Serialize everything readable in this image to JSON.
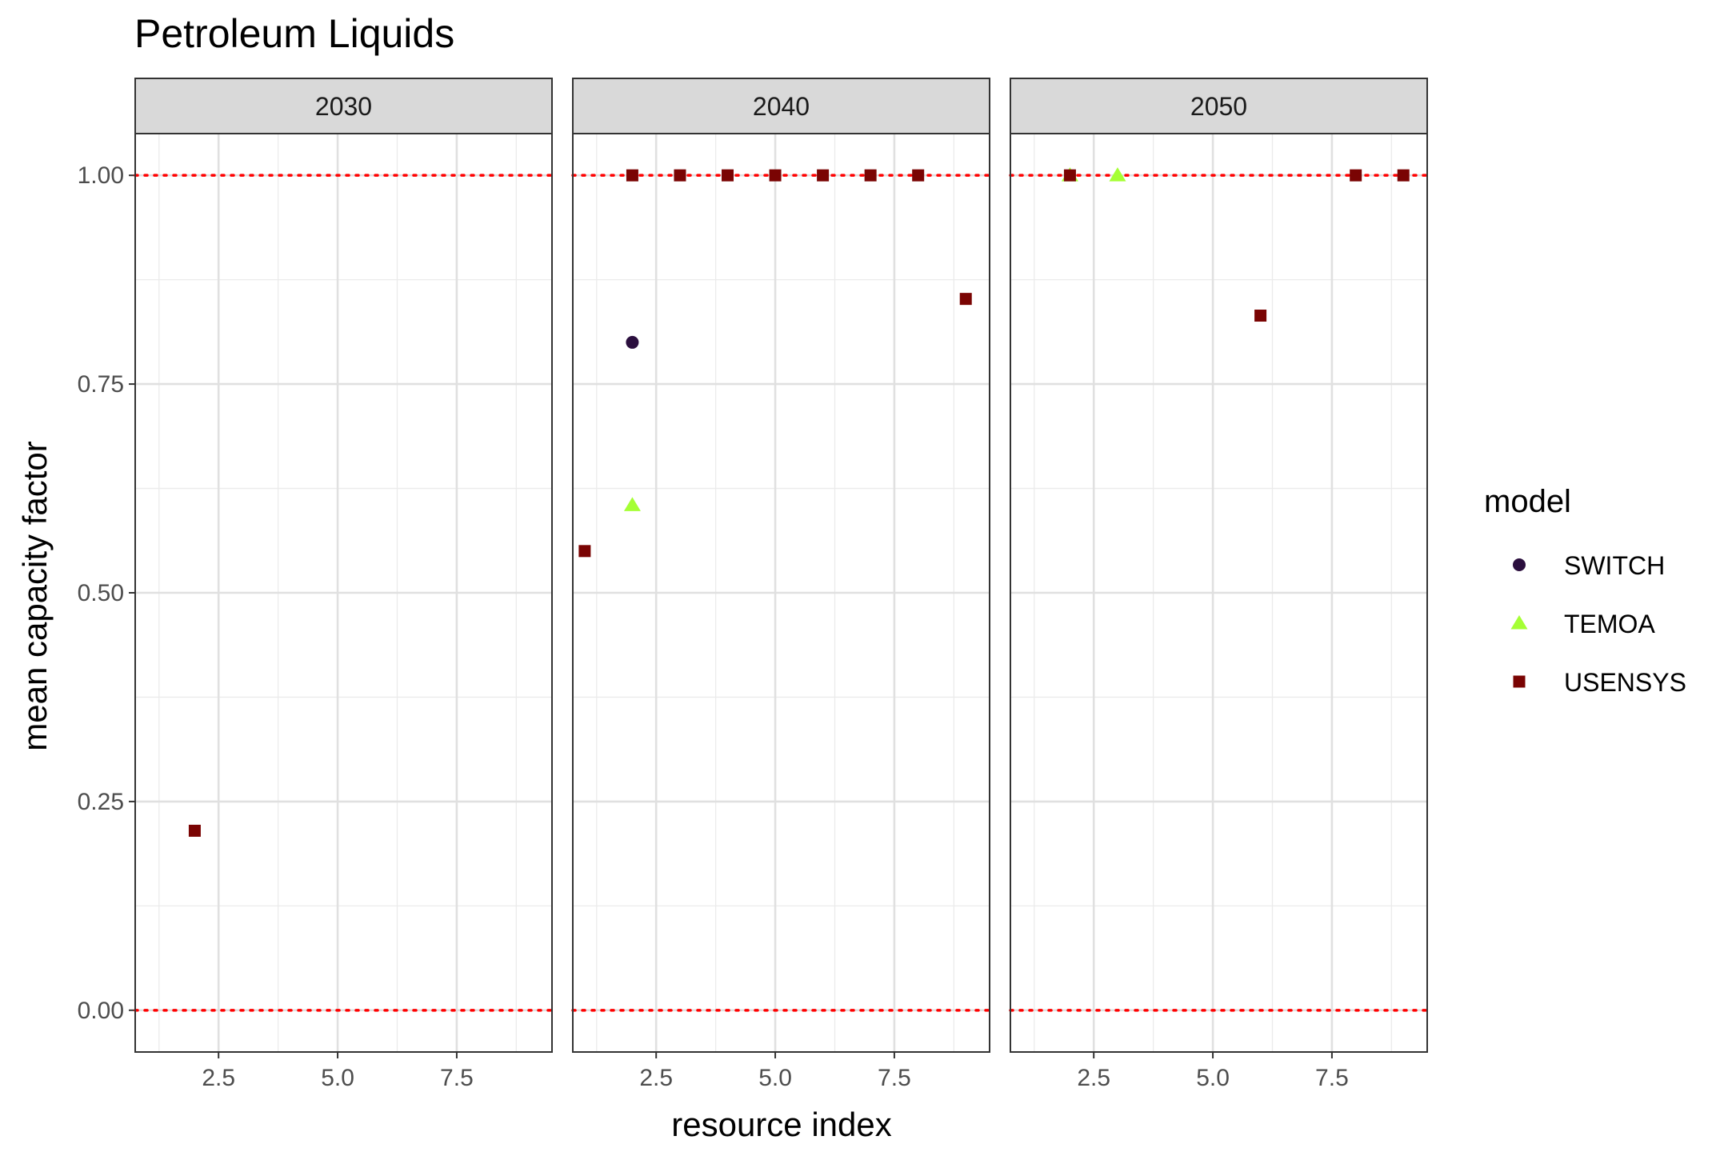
{
  "chart_data": {
    "type": "scatter",
    "title": "Petroleum Liquids",
    "xlabel": "resource index",
    "ylabel": "mean capacity factor",
    "xlim": [
      0.75,
      9.5
    ],
    "ylim": [
      -0.05,
      1.05
    ],
    "x_ticks": [
      2.5,
      5.0,
      7.5
    ],
    "x_tick_labels": [
      "2.5",
      "5.0",
      "7.5"
    ],
    "y_ticks": [
      0,
      0.25,
      0.5,
      0.75,
      1.0
    ],
    "y_tick_labels": [
      "0.00",
      "0.25",
      "0.50",
      "0.75",
      "1.00"
    ],
    "reference_lines": [
      0,
      1
    ],
    "reference_line_color": "#ff0000",
    "grid": true,
    "legend": {
      "title": "model",
      "position": "right",
      "entries": [
        {
          "name": "SWITCH",
          "shape": "circle",
          "color": "#2b0f3e"
        },
        {
          "name": "TEMOA",
          "shape": "triangle",
          "color": "#a5ff34"
        },
        {
          "name": "USENSYS",
          "shape": "square",
          "color": "#7a0403"
        }
      ]
    },
    "facets": [
      {
        "label": "2030",
        "series": [
          {
            "name": "USENSYS",
            "points": [
              [
                2,
                0.215
              ]
            ]
          }
        ]
      },
      {
        "label": "2040",
        "series": [
          {
            "name": "SWITCH",
            "points": [
              [
                2,
                0.8
              ]
            ]
          },
          {
            "name": "TEMOA",
            "points": [
              [
                2,
                0.605
              ]
            ]
          },
          {
            "name": "USENSYS",
            "points": [
              [
                1,
                0.55
              ],
              [
                2,
                1.0
              ],
              [
                3,
                1.0
              ],
              [
                4,
                1.0
              ],
              [
                5,
                1.0
              ],
              [
                6,
                1.0
              ],
              [
                7,
                1.0
              ],
              [
                8,
                1.0
              ],
              [
                9,
                0.852
              ]
            ]
          }
        ]
      },
      {
        "label": "2050",
        "series": [
          {
            "name": "TEMOA",
            "points": [
              [
                2,
                1.0
              ],
              [
                3,
                1.0
              ]
            ]
          },
          {
            "name": "USENSYS",
            "points": [
              [
                2,
                1.0
              ],
              [
                6,
                0.832
              ],
              [
                8,
                1.0
              ],
              [
                9,
                1.0
              ]
            ]
          }
        ]
      }
    ]
  }
}
